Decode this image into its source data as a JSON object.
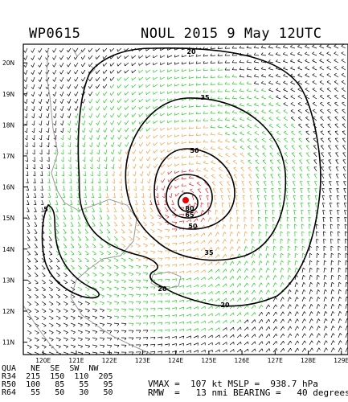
{
  "header": {
    "storm_id": "WP0615",
    "title": "NOUL 2015  9 May 12UTC"
  },
  "map": {
    "lat_labels": [
      "20N",
      "19N",
      "18N",
      "17N",
      "16N",
      "15N",
      "14N",
      "13N",
      "12N",
      "11N"
    ],
    "lon_labels": [
      "120E",
      "121E",
      "122E",
      "123E",
      "124E",
      "125E",
      "126E",
      "127E",
      "128E",
      "129E"
    ],
    "contour_labels": [
      "20",
      "35",
      "50",
      "65",
      "80",
      "5",
      "35",
      "50",
      "20",
      "20"
    ],
    "wind_colors": {
      "calm": "#000000",
      "r34": "#22cc22",
      "r50": "#f0a040",
      "r64": "#ee2222"
    },
    "center": {
      "lon": 124.2,
      "lat": 15.6
    }
  },
  "footer": {
    "qua_row": [
      "QUA",
      "NE",
      "SE",
      "SW",
      "NW"
    ],
    "r34_row": [
      "R34",
      "215",
      "150",
      "110",
      "205"
    ],
    "r50_row": [
      "R50",
      "100",
      "85",
      "55",
      "95"
    ],
    "r64_row": [
      "R64",
      "55",
      "50",
      "30",
      "50"
    ],
    "vmax_line": "VMAX =  107 kt MSLP =  938.7 hPa",
    "rmw_line": "RMW  =   13 nmi BEARING =   40 degrees"
  }
}
